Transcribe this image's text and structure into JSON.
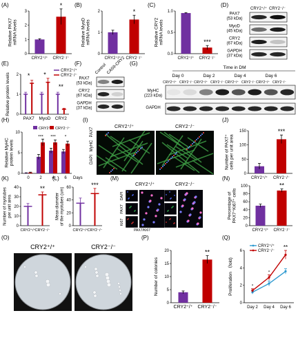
{
  "colors": {
    "purple": "#7030a0",
    "red": "#c00000",
    "blue": "#2e9ad0",
    "black": "#000000"
  },
  "panels": {
    "A": {
      "letter": "(A)",
      "ylabel": "Relative PAX7\nmRNA levels",
      "yticks": [
        "0",
        "1",
        "2",
        "3"
      ],
      "groups": [
        "CRY2⁺/⁺",
        "CRY2⁻/⁻"
      ],
      "sig": "*"
    },
    "B": {
      "letter": "(B)",
      "ylabel": "Relative MyoD\nmRNA levels",
      "yticks": [
        "0",
        "1",
        "2"
      ],
      "groups": [
        "CRY2⁺/⁺",
        "CRY2⁻/⁻"
      ],
      "sig": "*"
    },
    "C": {
      "letter": "(C)",
      "ylabel": "Relative CRY2\nmRNA levels",
      "yticks": [
        "0.0",
        "0.5",
        "1.0"
      ],
      "groups": [
        "CRY2⁺/⁺",
        "CRY2⁻/⁻"
      ],
      "sig": "***"
    },
    "D": {
      "letter": "(D)",
      "cols": [
        "CRY2⁺/⁺",
        "CRY2⁻/⁻"
      ],
      "rows": [
        "PAX7\n(53 kDa)",
        "MyoD\n(45 kDa)",
        "CRY2\n(67 kDa)",
        "GAPDH\n(37 kDa)"
      ]
    },
    "E": {
      "letter": "(E)",
      "ylabel": "Relative protein levels",
      "yticks": [
        "0",
        "1",
        "2"
      ],
      "categories": [
        "PAX7",
        "MyoD",
        "CRY2"
      ],
      "legend": [
        "CRY2⁺/⁺",
        "CRY2⁻/⁻"
      ],
      "sigs": [
        "*",
        "*",
        "**"
      ]
    },
    "F": {
      "letter": "(F)",
      "cols": [
        "Control",
        "CAS9-CRY2"
      ],
      "rows": [
        "PAX7\n(53 kDa)",
        "CRY2\n(67 kDa)",
        "GAPDH\n(37 kDa)"
      ]
    },
    "G": {
      "letter": "(G)",
      "title": "Time in DM",
      "days": [
        "Day 0",
        "Day 2",
        "Day 4",
        "Day 6"
      ],
      "pair": [
        "CRY2⁺/⁺",
        "CRY2⁻/⁻"
      ],
      "rows": [
        "MyHC\n(223 kDa)",
        "GAPDH"
      ]
    },
    "H": {
      "letter": "(H)",
      "ylabel": "Relative MyHC\nprotein levels",
      "yticks": [
        "0",
        "5",
        "10"
      ],
      "xticks": [
        "0",
        "2",
        "4",
        "6"
      ],
      "xunit": "Days",
      "legend": [
        "CRY2⁺/⁺",
        "CRY2⁻/⁻"
      ],
      "sigs": [
        "***",
        "***",
        "*"
      ]
    },
    "I": {
      "letter": "(I)",
      "left": "CRY2⁺/⁺",
      "right": "CRY2⁻/⁻",
      "side": [
        "DAPI",
        "MyHC",
        "PAX7"
      ]
    },
    "J": {
      "letter": "(J)",
      "ylabel": "Number of PAX7⁺\ncells per unit area",
      "yticks": [
        "0",
        "50",
        "100",
        "150"
      ],
      "groups": [
        "CRY2⁺/⁺",
        "CRY2⁻/⁻"
      ],
      "sig": "***"
    },
    "K": {
      "letter": "(K)",
      "ylabel": "Number of myotubes\nper unit area",
      "yticks": [
        "0",
        "10",
        "20",
        "30",
        "40"
      ],
      "groups": [
        "CRY2⁺/⁺",
        "CRY2⁻/⁻"
      ],
      "sig": "**"
    },
    "L": {
      "letter": "(L)",
      "ylabel": "Mean diameter\nof the myotubes (um)",
      "yticks": [
        "0",
        "20",
        "40",
        "60"
      ],
      "groups": [
        "CRY2⁺/⁺",
        "CRY2⁻/⁻"
      ],
      "sig": "***"
    },
    "M": {
      "letter": "(M)",
      "top": [
        "CRY2⁺/⁺",
        "CRY2⁻/⁻"
      ],
      "side": [
        "DAPI",
        "PAX7",
        "Ki67"
      ],
      "merge": "PAX7/Ki67"
    },
    "N": {
      "letter": "(N)",
      "ylabel": "Percentage of\nPAX7⁺Ki67⁺ cells",
      "yticks": [
        "0",
        "20",
        "40",
        "60",
        "80",
        "100"
      ],
      "groups": [
        "CRY2⁺/⁺",
        "CRY2⁻/⁻"
      ],
      "sig": "**"
    },
    "O": {
      "letter": "(O)",
      "left": "CRY2⁺/⁺",
      "right": "CRY2⁻/⁻"
    },
    "P": {
      "letter": "(P)",
      "ylabel": "Number of colonies",
      "yticks": [
        "0",
        "5",
        "10",
        "15",
        "20"
      ],
      "groups": [
        "CRY2⁺/⁺",
        "CRY2⁻/⁻"
      ],
      "sig": "**"
    },
    "Q": {
      "letter": "(Q)",
      "ylabel": "Proliferation （fold)",
      "yticks": [
        "0",
        "2",
        "4",
        "6"
      ],
      "xticks": [
        "Day 2",
        "Day 4",
        "Day 6"
      ],
      "legend": [
        "CRY2⁺/⁺",
        "CRY2⁻/⁻"
      ],
      "sigs": [
        "*",
        "*",
        "**"
      ]
    }
  },
  "chart_data": [
    {
      "id": "A",
      "type": "bar",
      "categories": [
        "CRY2⁺/⁺",
        "CRY2⁻/⁻"
      ],
      "values": [
        1.0,
        2.6
      ],
      "errors": [
        0.05,
        0.55
      ],
      "ylim": [
        0,
        3
      ],
      "ylabel": "Relative PAX7 mRNA levels"
    },
    {
      "id": "B",
      "type": "bar",
      "categories": [
        "CRY2⁺/⁺",
        "CRY2⁻/⁻"
      ],
      "values": [
        1.0,
        1.6
      ],
      "errors": [
        0.1,
        0.2
      ],
      "ylim": [
        0,
        2
      ],
      "ylabel": "Relative MyoD mRNA levels"
    },
    {
      "id": "C",
      "type": "bar",
      "categories": [
        "CRY2⁺/⁺",
        "CRY2⁻/⁻"
      ],
      "values": [
        1.0,
        0.15
      ],
      "errors": [
        0.01,
        0.05
      ],
      "ylim": [
        0,
        1.05
      ],
      "ylabel": "Relative CRY2 mRNA levels"
    },
    {
      "id": "E",
      "type": "line",
      "categories": [
        "PAX7",
        "MyoD",
        "CRY2"
      ],
      "ylim": [
        0,
        2
      ],
      "ylabel": "Relative protein levels",
      "series": [
        {
          "name": "CRY2⁺/⁺",
          "values": [
            1.0,
            1.0,
            1.0
          ],
          "errors": [
            0.1,
            0.1,
            0.1
          ]
        },
        {
          "name": "CRY2⁻/⁻",
          "values": [
            1.55,
            1.6,
            0.25
          ],
          "errors": [
            0.15,
            0.2,
            0.05
          ]
        }
      ]
    },
    {
      "id": "H",
      "type": "bar",
      "x": [
        0,
        2,
        4,
        6
      ],
      "ylim": [
        0,
        10
      ],
      "ylabel": "Relative MyHC protein levels",
      "xlabel": "Days",
      "series": [
        {
          "name": "CRY2⁺/⁺",
          "values": [
            0.1,
            4.0,
            5.5,
            5.3
          ],
          "errors": [
            0.05,
            0.6,
            0.6,
            0.5
          ]
        },
        {
          "name": "CRY2⁻/⁻",
          "values": [
            0.2,
            7.5,
            7.5,
            7.2
          ],
          "errors": [
            0.1,
            0.8,
            0.6,
            0.6
          ]
        }
      ]
    },
    {
      "id": "J",
      "type": "bar",
      "categories": [
        "CRY2⁺/⁺",
        "CRY2⁻/⁻"
      ],
      "values": [
        25,
        120
      ],
      "errors": [
        10,
        15
      ],
      "ylim": [
        0,
        150
      ],
      "ylabel": "Number of PAX7⁺ cells per unit area"
    },
    {
      "id": "K",
      "type": "line",
      "categories": [
        "CRY2⁺/⁺",
        "CRY2⁻/⁻"
      ],
      "values": [
        20,
        32
      ],
      "errors": [
        3,
        3
      ],
      "ylim": [
        0,
        40
      ],
      "ylabel": "Number of myotubes per unit area"
    },
    {
      "id": "L",
      "type": "line",
      "categories": [
        "CRY2⁺/⁺",
        "CRY2⁻/⁻"
      ],
      "values": [
        35,
        50
      ],
      "errors": [
        8,
        8
      ],
      "ylim": [
        0,
        60
      ],
      "ylabel": "Mean diameter of the myotubes (um)"
    },
    {
      "id": "N",
      "type": "bar",
      "categories": [
        "CRY2⁺/⁺",
        "CRY2⁻/⁻"
      ],
      "values": [
        50,
        88
      ],
      "errors": [
        4,
        4
      ],
      "ylim": [
        0,
        100
      ],
      "ylabel": "Percentage of PAX7⁺Ki67⁺ cells"
    },
    {
      "id": "P",
      "type": "bar",
      "categories": [
        "CRY2⁺/⁺",
        "CRY2⁻/⁻"
      ],
      "values": [
        4,
        16.5
      ],
      "errors": [
        0.5,
        1.5
      ],
      "ylim": [
        0,
        20
      ],
      "ylabel": "Number of colonies"
    },
    {
      "id": "Q",
      "type": "line",
      "categories": [
        "Day 2",
        "Day 4",
        "Day 6"
      ],
      "ylim": [
        0,
        6
      ],
      "ylabel": "Proliferation （fold)",
      "series": [
        {
          "name": "CRY2⁺/⁺",
          "values": [
            1.2,
            2.2,
            3.6
          ],
          "errors": [
            0.2,
            0.3,
            0.3
          ]
        },
        {
          "name": "CRY2⁻/⁻",
          "values": [
            1.4,
            2.9,
            5.5
          ],
          "errors": [
            0.2,
            0.3,
            0.5
          ]
        }
      ]
    }
  ]
}
